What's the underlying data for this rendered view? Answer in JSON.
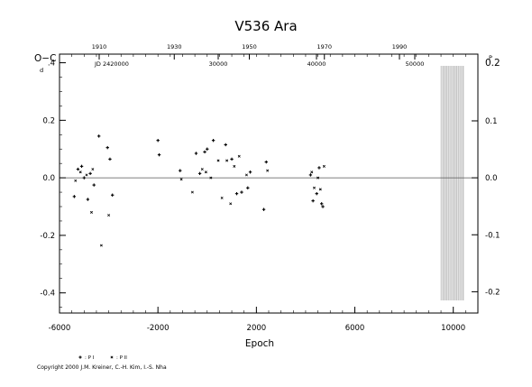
{
  "chart_data": {
    "type": "scatter",
    "title": "V536 Ara",
    "ylabel": "O−C",
    "ylabel_unit": "d",
    "xlabel": "Epoch",
    "right_ylabel": "0.2",
    "right_ylabel_unit": "P",
    "top_axis_label": "JD 2420000",
    "xlim": [
      -6000,
      11000
    ],
    "ylim": [
      -0.47,
      0.43
    ],
    "yticks": [
      -0.4,
      -0.2,
      0.0,
      0.2,
      0.4
    ],
    "ytick_labels": [
      "-0.4",
      "-0.2",
      "0.0",
      "0.2",
      ".4"
    ],
    "xticks": [
      -6000,
      -2000,
      2000,
      6000,
      10000
    ],
    "xtick_labels": [
      "-6000",
      "-2000",
      "2000",
      "6000",
      "10000"
    ],
    "top_year_ticks": [
      1910,
      1930,
      1950,
      1970,
      1990
    ],
    "top_year_labels": [
      "1910",
      "1930",
      "1950",
      "1970",
      "1990"
    ],
    "top_jd_ticks": [
      30000,
      40000,
      50000
    ],
    "top_jd_labels": [
      "30000",
      "40000",
      "50000"
    ],
    "right_ticks": [
      0.1,
      0.0,
      -0.1,
      -0.2
    ],
    "right_tick_labels": [
      "0.1",
      "0.0",
      "-0.1",
      "-0.2"
    ],
    "grid": false,
    "zero_line": true,
    "shaded_region": {
      "x_from": 9500,
      "x_to": 10450
    },
    "legend_position": "bottom-left",
    "series": [
      {
        "name": "P I",
        "marker": "plus",
        "points": [
          [
            -5400,
            -0.065
          ],
          [
            -5250,
            0.03
          ],
          [
            -5100,
            0.04
          ],
          [
            -5000,
            0.0
          ],
          [
            -4850,
            -0.075
          ],
          [
            -4750,
            0.015
          ],
          [
            -4600,
            -0.025
          ],
          [
            -4400,
            0.145
          ],
          [
            -4050,
            0.105
          ],
          [
            -3950,
            0.065
          ],
          [
            -3850,
            -0.06
          ],
          [
            -2000,
            0.13
          ],
          [
            -1950,
            0.08
          ],
          [
            -1100,
            0.025
          ],
          [
            -450,
            0.085
          ],
          [
            -300,
            0.015
          ],
          [
            -100,
            0.09
          ],
          [
            0,
            0.1
          ],
          [
            250,
            0.13
          ],
          [
            750,
            0.115
          ],
          [
            1000,
            0.065
          ],
          [
            1200,
            -0.055
          ],
          [
            1400,
            -0.05
          ],
          [
            1650,
            -0.035
          ],
          [
            1750,
            0.02
          ],
          [
            2300,
            -0.11
          ],
          [
            2400,
            0.055
          ],
          [
            4200,
            0.01
          ],
          [
            4300,
            -0.08
          ],
          [
            4450,
            -0.055
          ],
          [
            4550,
            0.035
          ],
          [
            4650,
            -0.09
          ],
          [
            4700,
            -0.1
          ]
        ]
      },
      {
        "name": "P II",
        "marker": "x",
        "points": [
          [
            -5350,
            -0.01
          ],
          [
            -5150,
            0.02
          ],
          [
            -4900,
            0.01
          ],
          [
            -4700,
            -0.12
          ],
          [
            -4650,
            0.03
          ],
          [
            -4300,
            -0.235
          ],
          [
            -4000,
            -0.13
          ],
          [
            -1050,
            -0.005
          ],
          [
            -600,
            -0.05
          ],
          [
            -200,
            0.03
          ],
          [
            -50,
            0.02
          ],
          [
            150,
            0.0
          ],
          [
            450,
            0.06
          ],
          [
            600,
            -0.07
          ],
          [
            800,
            0.06
          ],
          [
            950,
            -0.09
          ],
          [
            1100,
            0.04
          ],
          [
            1300,
            0.075
          ],
          [
            1600,
            0.01
          ],
          [
            2450,
            0.025
          ],
          [
            4250,
            0.02
          ],
          [
            4350,
            -0.035
          ],
          [
            4500,
            0.0
          ],
          [
            4600,
            -0.04
          ],
          [
            4750,
            0.04
          ]
        ]
      }
    ]
  },
  "legend": {
    "items": [
      "P I",
      "P II"
    ]
  },
  "copyright": "Copyright 2000 J.M. Kreiner, C.-H. Kim, I.-S. Nha"
}
